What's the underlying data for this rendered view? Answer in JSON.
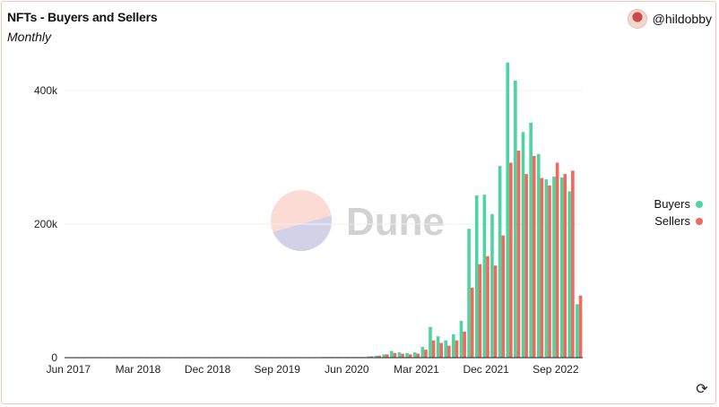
{
  "header": {
    "title": "NFTs - Buyers and Sellers",
    "subtitle": "Monthly",
    "author": "@hildobby"
  },
  "watermark": {
    "text": "Dune"
  },
  "colors": {
    "buyers": "#4fd3a2",
    "sellers": "#f0695a"
  },
  "legend": {
    "items": [
      "Buyers",
      "Sellers"
    ]
  },
  "chart_data": {
    "type": "bar",
    "x_start": "2017-06",
    "x_ticks": [
      "Jun 2017",
      "Mar 2018",
      "Dec 2018",
      "Sep 2019",
      "Jun 2020",
      "Mar 2021",
      "Dec 2021",
      "Sep 2022"
    ],
    "y_ticks": [
      "0",
      "200k",
      "400k"
    ],
    "ylim": [
      0,
      440000
    ],
    "series": [
      {
        "name": "Buyers",
        "values": [
          100,
          100,
          100,
          100,
          100,
          100,
          100,
          100,
          100,
          100,
          100,
          100,
          100,
          100,
          100,
          100,
          100,
          100,
          500,
          500,
          500,
          500,
          500,
          500,
          500,
          500,
          500,
          500,
          500,
          500,
          500,
          500,
          500,
          1000,
          1000,
          1000,
          1000,
          1000,
          1000,
          2000,
          3000,
          5000,
          10000,
          8000,
          7000,
          8000,
          16000,
          46000,
          32000,
          26000,
          35000,
          55000,
          193000,
          243000,
          244000,
          215000,
          287000,
          442000,
          415000,
          338000,
          352000,
          305000,
          267000,
          271000,
          270000,
          249000,
          80000
        ]
      },
      {
        "name": "Sellers",
        "values": [
          100,
          100,
          100,
          100,
          100,
          100,
          100,
          100,
          100,
          100,
          100,
          100,
          100,
          100,
          100,
          100,
          100,
          100,
          500,
          500,
          500,
          500,
          500,
          500,
          500,
          500,
          500,
          500,
          500,
          500,
          500,
          500,
          500,
          1000,
          1000,
          1000,
          1000,
          1000,
          1000,
          2000,
          3000,
          5000,
          7000,
          6000,
          5000,
          6000,
          12000,
          26000,
          22000,
          18000,
          26000,
          39000,
          105000,
          140000,
          152000,
          138000,
          183000,
          292000,
          310000,
          275000,
          302000,
          269000,
          258000,
          292000,
          275000,
          280000,
          93000
        ]
      }
    ]
  }
}
